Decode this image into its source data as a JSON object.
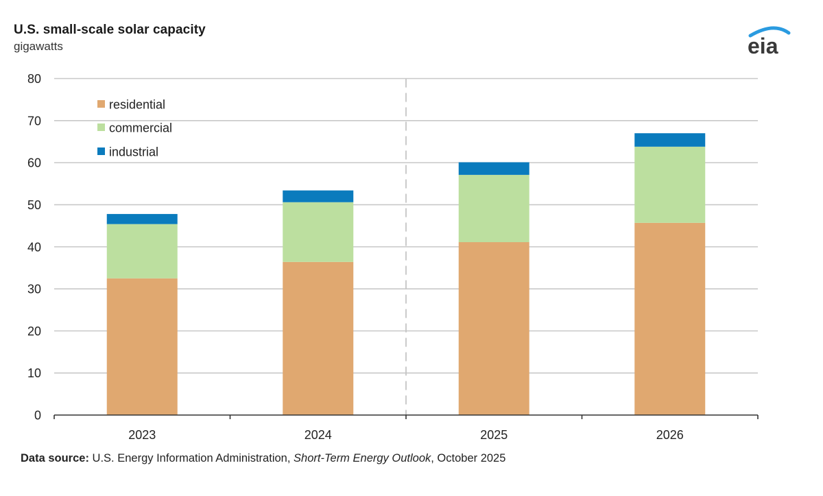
{
  "chart_data": {
    "type": "bar",
    "stacked": true,
    "title": "U.S. small-scale solar capacity",
    "subtitle": "gigawatts",
    "xlabel": "",
    "ylabel": "gigawatts",
    "categories": [
      "2023",
      "2024",
      "2025",
      "2026"
    ],
    "series": [
      {
        "name": "residential",
        "color": "#e0a870",
        "values": [
          32.5,
          36.4,
          41.1,
          45.7
        ]
      },
      {
        "name": "commercial",
        "color": "#bcdf9f",
        "values": [
          12.9,
          14.2,
          16.0,
          18.1
        ]
      },
      {
        "name": "industrial",
        "color": "#0a7bbd",
        "values": [
          2.4,
          2.8,
          3.0,
          3.2
        ]
      }
    ],
    "ylim": [
      0,
      80
    ],
    "yticks": [
      "0",
      "10",
      "20",
      "30",
      "40",
      "50",
      "60",
      "70",
      "80"
    ],
    "ytick_values": [
      0,
      10,
      20,
      30,
      40,
      50,
      60,
      70,
      80
    ],
    "grid": true,
    "legend_position": "top-left",
    "forecast_divider_between": [
      "2024",
      "2025"
    ]
  },
  "header": {
    "title": "U.S. small-scale solar capacity",
    "units": "gigawatts",
    "logo_text": "eia"
  },
  "footer": {
    "source_label": "Data source:",
    "source_org": " U.S. Energy Information Administration, ",
    "source_publication": "Short-Term Energy Outlook",
    "source_date": ", October 2025"
  },
  "colors": {
    "grid": "#c8c8c8",
    "axis": "#333333",
    "logo_arc": "#2a9be0",
    "logo_text": "#3a3a3a"
  }
}
